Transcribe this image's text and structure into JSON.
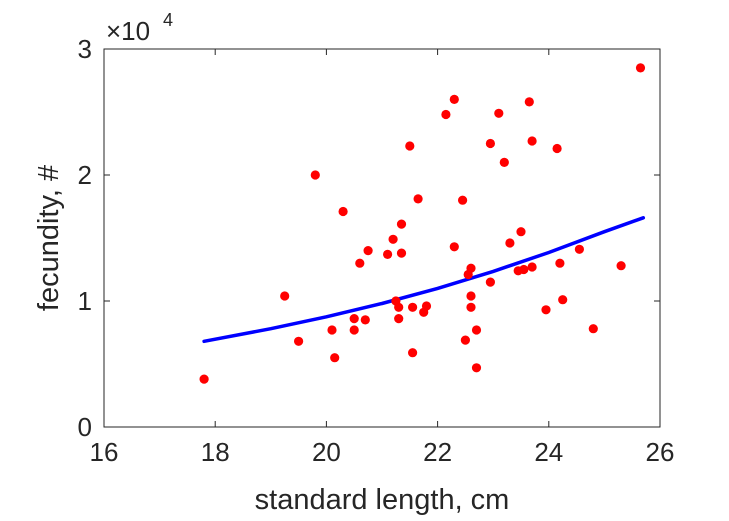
{
  "chart_data": {
    "type": "scatter",
    "xlabel": "standard length, cm",
    "ylabel": "fecundity, #",
    "xlim": [
      16,
      26
    ],
    "ylim": [
      0,
      30000
    ],
    "x_ticks": [
      16,
      18,
      20,
      22,
      24,
      26
    ],
    "y_ticks": [
      0,
      10000,
      20000,
      30000
    ],
    "y_tick_labels": [
      "0",
      "1",
      "2",
      "3"
    ],
    "y_exponent_label": {
      "base": "×10",
      "power": "4"
    },
    "grid": false,
    "series": [
      {
        "kind": "scatter",
        "color": "#ff0000",
        "points": [
          [
            17.8,
            3800
          ],
          [
            19.25,
            10400
          ],
          [
            19.5,
            6800
          ],
          [
            19.8,
            20000
          ],
          [
            20.1,
            7700
          ],
          [
            20.15,
            5500
          ],
          [
            20.3,
            17100
          ],
          [
            20.5,
            8600
          ],
          [
            20.5,
            7700
          ],
          [
            20.6,
            13000
          ],
          [
            20.7,
            8500
          ],
          [
            20.75,
            14000
          ],
          [
            21.1,
            13700
          ],
          [
            21.2,
            14900
          ],
          [
            21.25,
            10000
          ],
          [
            21.3,
            9500
          ],
          [
            21.3,
            8600
          ],
          [
            21.35,
            13800
          ],
          [
            21.35,
            16100
          ],
          [
            21.5,
            22300
          ],
          [
            21.55,
            9500
          ],
          [
            21.55,
            5900
          ],
          [
            21.65,
            18100
          ],
          [
            21.75,
            9100
          ],
          [
            21.8,
            9600
          ],
          [
            22.15,
            24800
          ],
          [
            22.3,
            26000
          ],
          [
            22.3,
            14300
          ],
          [
            22.45,
            18000
          ],
          [
            22.5,
            6900
          ],
          [
            22.55,
            12100
          ],
          [
            22.6,
            10400
          ],
          [
            22.6,
            9500
          ],
          [
            22.6,
            12600
          ],
          [
            22.7,
            4700
          ],
          [
            22.7,
            7700
          ],
          [
            22.95,
            11500
          ],
          [
            22.95,
            22500
          ],
          [
            23.1,
            24900
          ],
          [
            23.2,
            21000
          ],
          [
            23.3,
            14600
          ],
          [
            23.45,
            12400
          ],
          [
            23.5,
            15500
          ],
          [
            23.55,
            12500
          ],
          [
            23.65,
            25800
          ],
          [
            23.7,
            22700
          ],
          [
            23.7,
            12700
          ],
          [
            23.95,
            9300
          ],
          [
            24.15,
            22100
          ],
          [
            24.2,
            13000
          ],
          [
            24.25,
            10100
          ],
          [
            24.55,
            14100
          ],
          [
            24.8,
            7800
          ],
          [
            25.3,
            12800
          ],
          [
            25.65,
            28500
          ]
        ]
      },
      {
        "kind": "line",
        "color": "#0000ff",
        "points": [
          [
            17.8,
            6800
          ],
          [
            19.0,
            7800
          ],
          [
            20.0,
            8750
          ],
          [
            21.0,
            9800
          ],
          [
            22.0,
            11000
          ],
          [
            23.0,
            12350
          ],
          [
            24.0,
            13850
          ],
          [
            25.0,
            15500
          ],
          [
            25.7,
            16600
          ]
        ]
      }
    ]
  }
}
